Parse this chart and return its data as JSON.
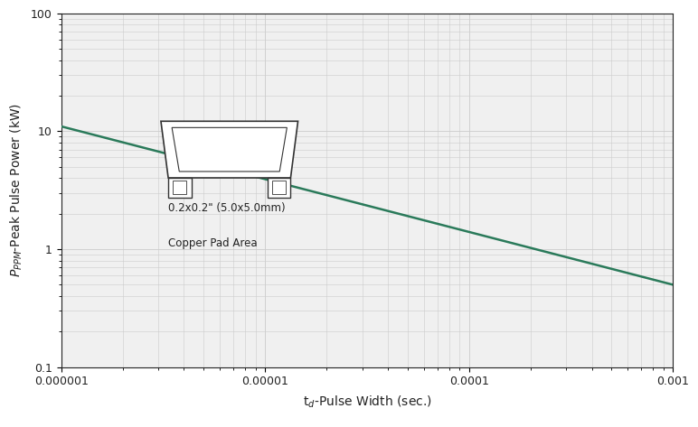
{
  "title": "",
  "xlabel": "t$_d$-Pulse Width (sec.)",
  "ylabel": "$P_{PPM}$-Peak Pulse Power (kW)",
  "xlim": [
    1e-06,
    0.001
  ],
  "ylim": [
    0.1,
    100
  ],
  "line_color": "#2a7a5a",
  "line_width": 1.8,
  "x_data": [
    1e-06,
    0.001
  ],
  "y_data": [
    11.0,
    0.5
  ],
  "annotation_line1": "0.2x0.2\" (5.0x5.0mm)",
  "annotation_line2": "Copper Pad Area",
  "bg_color": "#ffffff",
  "plot_bg_color": "#f0f0f0",
  "grid_color": "#cccccc",
  "axis_color": "#222222",
  "tick_label_color": "#222222",
  "tick_label_fontsize": 9,
  "label_fontsize": 10
}
